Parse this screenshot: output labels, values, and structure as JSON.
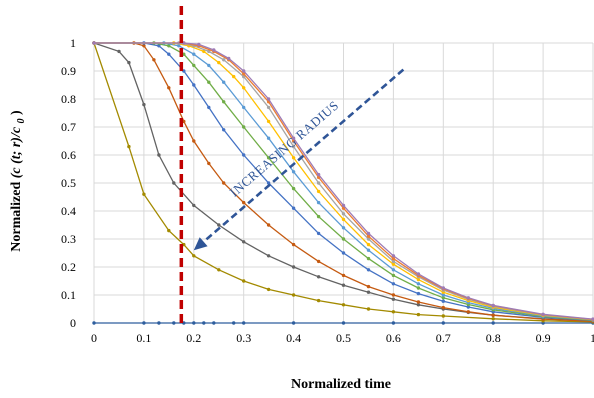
{
  "chart_data": {
    "type": "line",
    "title": "",
    "xlabel": "Normalized time",
    "ylabel_parts": [
      "Normalized ",
      "(c (t; r)/c",
      "0",
      ")"
    ],
    "xlim": [
      0,
      1
    ],
    "ylim": [
      0,
      1
    ],
    "x_ticks": [
      "0",
      "0.1",
      "0.2",
      "0.3",
      "0.4",
      "0.5",
      "0.6",
      "0.7",
      "0.8",
      "0.9",
      "1"
    ],
    "y_ticks": [
      "0",
      "0.1",
      "0.2",
      "0.3",
      "0.4",
      "0.5",
      "0.6",
      "0.7",
      "0.8",
      "0.9",
      "1"
    ],
    "grid": true,
    "legend": "none",
    "annotation": {
      "text": "INCREASING RADIUS",
      "color": "#2f5597",
      "arrow_from": [
        0.62,
        0.905
      ],
      "arrow_to": [
        0.2,
        0.26
      ]
    },
    "vertical_marker": {
      "x": 0.175,
      "color": "#c00000"
    },
    "series": [
      {
        "color": "#2e5e9e",
        "points": [
          [
            0,
            0
          ],
          [
            0.1,
            0
          ],
          [
            0.13,
            0
          ],
          [
            0.16,
            0
          ],
          [
            0.18,
            0
          ],
          [
            0.2,
            0
          ],
          [
            0.22,
            0
          ],
          [
            0.24,
            0
          ],
          [
            0.28,
            0
          ],
          [
            0.3,
            0
          ],
          [
            0.4,
            0
          ],
          [
            0.5,
            0
          ],
          [
            0.6,
            0
          ],
          [
            0.7,
            0
          ],
          [
            0.8,
            0
          ],
          [
            0.9,
            0
          ],
          [
            1,
            0
          ]
        ]
      },
      {
        "color": "#a38a00",
        "points": [
          [
            0,
            1
          ],
          [
            0.07,
            0.63
          ],
          [
            0.1,
            0.46
          ],
          [
            0.15,
            0.33
          ],
          [
            0.18,
            0.28
          ],
          [
            0.2,
            0.24
          ],
          [
            0.25,
            0.19
          ],
          [
            0.3,
            0.15
          ],
          [
            0.35,
            0.12
          ],
          [
            0.4,
            0.1
          ],
          [
            0.45,
            0.08
          ],
          [
            0.5,
            0.065
          ],
          [
            0.55,
            0.05
          ],
          [
            0.6,
            0.04
          ],
          [
            0.65,
            0.03
          ],
          [
            0.7,
            0.025
          ],
          [
            0.8,
            0.015
          ],
          [
            0.9,
            0.008
          ],
          [
            1,
            0.004
          ]
        ]
      },
      {
        "color": "#636363",
        "points": [
          [
            0,
            1
          ],
          [
            0.05,
            0.97
          ],
          [
            0.07,
            0.93
          ],
          [
            0.1,
            0.78
          ],
          [
            0.13,
            0.6
          ],
          [
            0.16,
            0.5
          ],
          [
            0.2,
            0.42
          ],
          [
            0.25,
            0.35
          ],
          [
            0.3,
            0.29
          ],
          [
            0.35,
            0.24
          ],
          [
            0.4,
            0.2
          ],
          [
            0.45,
            0.165
          ],
          [
            0.5,
            0.135
          ],
          [
            0.55,
            0.11
          ],
          [
            0.6,
            0.085
          ],
          [
            0.65,
            0.065
          ],
          [
            0.7,
            0.05
          ],
          [
            0.75,
            0.038
          ],
          [
            0.8,
            0.028
          ],
          [
            0.9,
            0.015
          ],
          [
            1,
            0.007
          ]
        ]
      },
      {
        "color": "#c55a11",
        "points": [
          [
            0,
            1
          ],
          [
            0.08,
            1
          ],
          [
            0.1,
            0.99
          ],
          [
            0.12,
            0.94
          ],
          [
            0.15,
            0.84
          ],
          [
            0.18,
            0.72
          ],
          [
            0.2,
            0.65
          ],
          [
            0.23,
            0.57
          ],
          [
            0.26,
            0.5
          ],
          [
            0.3,
            0.43
          ],
          [
            0.35,
            0.35
          ],
          [
            0.4,
            0.28
          ],
          [
            0.45,
            0.22
          ],
          [
            0.5,
            0.17
          ],
          [
            0.55,
            0.13
          ],
          [
            0.6,
            0.1
          ],
          [
            0.65,
            0.075
          ],
          [
            0.7,
            0.055
          ],
          [
            0.75,
            0.04
          ],
          [
            0.8,
            0.028
          ],
          [
            0.9,
            0.014
          ],
          [
            1,
            0.006
          ]
        ]
      },
      {
        "color": "#4472c4",
        "points": [
          [
            0,
            1
          ],
          [
            0.1,
            1
          ],
          [
            0.13,
            0.99
          ],
          [
            0.15,
            0.96
          ],
          [
            0.18,
            0.9
          ],
          [
            0.2,
            0.85
          ],
          [
            0.23,
            0.77
          ],
          [
            0.26,
            0.69
          ],
          [
            0.3,
            0.6
          ],
          [
            0.35,
            0.5
          ],
          [
            0.4,
            0.41
          ],
          [
            0.45,
            0.32
          ],
          [
            0.5,
            0.25
          ],
          [
            0.55,
            0.19
          ],
          [
            0.6,
            0.14
          ],
          [
            0.65,
            0.105
          ],
          [
            0.7,
            0.078
          ],
          [
            0.75,
            0.057
          ],
          [
            0.8,
            0.04
          ],
          [
            0.9,
            0.02
          ],
          [
            1,
            0.009
          ]
        ]
      },
      {
        "color": "#70ad47",
        "points": [
          [
            0,
            1
          ],
          [
            0.12,
            1
          ],
          [
            0.15,
            0.99
          ],
          [
            0.18,
            0.96
          ],
          [
            0.2,
            0.92
          ],
          [
            0.23,
            0.86
          ],
          [
            0.26,
            0.79
          ],
          [
            0.3,
            0.7
          ],
          [
            0.35,
            0.59
          ],
          [
            0.4,
            0.48
          ],
          [
            0.45,
            0.38
          ],
          [
            0.5,
            0.3
          ],
          [
            0.55,
            0.23
          ],
          [
            0.6,
            0.17
          ],
          [
            0.65,
            0.125
          ],
          [
            0.7,
            0.09
          ],
          [
            0.75,
            0.066
          ],
          [
            0.8,
            0.047
          ],
          [
            0.9,
            0.023
          ],
          [
            1,
            0.01
          ]
        ]
      },
      {
        "color": "#5b9bd5",
        "points": [
          [
            0,
            1
          ],
          [
            0.14,
            1
          ],
          [
            0.17,
            0.99
          ],
          [
            0.2,
            0.96
          ],
          [
            0.23,
            0.92
          ],
          [
            0.26,
            0.86
          ],
          [
            0.3,
            0.77
          ],
          [
            0.35,
            0.66
          ],
          [
            0.4,
            0.54
          ],
          [
            0.45,
            0.43
          ],
          [
            0.5,
            0.34
          ],
          [
            0.55,
            0.26
          ],
          [
            0.6,
            0.19
          ],
          [
            0.65,
            0.14
          ],
          [
            0.7,
            0.1
          ],
          [
            0.75,
            0.073
          ],
          [
            0.8,
            0.052
          ],
          [
            0.9,
            0.025
          ],
          [
            1,
            0.011
          ]
        ]
      },
      {
        "color": "#ffc000",
        "points": [
          [
            0,
            1
          ],
          [
            0.16,
            1
          ],
          [
            0.19,
            0.99
          ],
          [
            0.22,
            0.97
          ],
          [
            0.25,
            0.93
          ],
          [
            0.28,
            0.88
          ],
          [
            0.3,
            0.84
          ],
          [
            0.35,
            0.72
          ],
          [
            0.4,
            0.59
          ],
          [
            0.45,
            0.47
          ],
          [
            0.5,
            0.37
          ],
          [
            0.55,
            0.28
          ],
          [
            0.6,
            0.21
          ],
          [
            0.65,
            0.155
          ],
          [
            0.7,
            0.11
          ],
          [
            0.75,
            0.08
          ],
          [
            0.8,
            0.056
          ],
          [
            0.9,
            0.027
          ],
          [
            1,
            0.012
          ]
        ]
      },
      {
        "color": "#a5a5a5",
        "points": [
          [
            0,
            1
          ],
          [
            0.17,
            1
          ],
          [
            0.2,
            0.99
          ],
          [
            0.23,
            0.97
          ],
          [
            0.26,
            0.94
          ],
          [
            0.3,
            0.88
          ],
          [
            0.35,
            0.77
          ],
          [
            0.4,
            0.63
          ],
          [
            0.45,
            0.5
          ],
          [
            0.5,
            0.39
          ],
          [
            0.55,
            0.3
          ],
          [
            0.6,
            0.22
          ],
          [
            0.65,
            0.165
          ],
          [
            0.7,
            0.118
          ],
          [
            0.75,
            0.085
          ],
          [
            0.8,
            0.06
          ],
          [
            0.9,
            0.029
          ],
          [
            1,
            0.013
          ]
        ]
      },
      {
        "color": "#ed7d31",
        "points": [
          [
            0,
            1
          ],
          [
            0.18,
            1
          ],
          [
            0.21,
            0.99
          ],
          [
            0.24,
            0.97
          ],
          [
            0.27,
            0.94
          ],
          [
            0.3,
            0.89
          ],
          [
            0.35,
            0.79
          ],
          [
            0.4,
            0.65
          ],
          [
            0.45,
            0.52
          ],
          [
            0.5,
            0.41
          ],
          [
            0.55,
            0.31
          ],
          [
            0.6,
            0.23
          ],
          [
            0.65,
            0.17
          ],
          [
            0.7,
            0.122
          ],
          [
            0.75,
            0.088
          ],
          [
            0.8,
            0.062
          ],
          [
            0.9,
            0.03
          ],
          [
            1,
            0.013
          ]
        ]
      },
      {
        "color": "#9e7bb5",
        "points": [
          [
            0,
            1
          ],
          [
            0.18,
            1
          ],
          [
            0.21,
            0.995
          ],
          [
            0.24,
            0.975
          ],
          [
            0.27,
            0.945
          ],
          [
            0.3,
            0.9
          ],
          [
            0.35,
            0.8
          ],
          [
            0.4,
            0.66
          ],
          [
            0.45,
            0.53
          ],
          [
            0.5,
            0.42
          ],
          [
            0.55,
            0.32
          ],
          [
            0.6,
            0.24
          ],
          [
            0.65,
            0.175
          ],
          [
            0.7,
            0.125
          ],
          [
            0.75,
            0.09
          ],
          [
            0.8,
            0.063
          ],
          [
            0.9,
            0.031
          ],
          [
            1,
            0.014
          ]
        ]
      }
    ]
  }
}
